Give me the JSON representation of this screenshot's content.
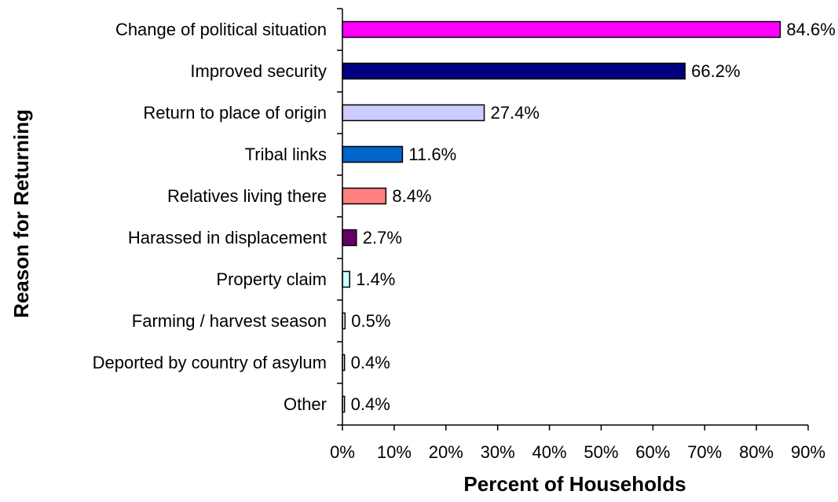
{
  "chart_data": {
    "type": "bar",
    "orientation": "horizontal",
    "categories": [
      "Change of political situation",
      "Improved security",
      "Return to place of origin",
      "Tribal links",
      "Relatives living there",
      "Harassed in displacement",
      "Property claim",
      "Farming / harvest season",
      "Deported by country of asylum",
      "Other"
    ],
    "values": [
      84.6,
      66.2,
      27.4,
      11.6,
      8.4,
      2.7,
      1.4,
      0.5,
      0.4,
      0.4
    ],
    "value_labels": [
      "84.6%",
      "66.2%",
      "27.4%",
      "11.6%",
      "8.4%",
      "2.7%",
      "1.4%",
      "0.5%",
      "0.4%",
      "0.4%"
    ],
    "colors": [
      "#FF00FF",
      "#000080",
      "#CCCCFF",
      "#0066CC",
      "#FF8080",
      "#660066",
      "#CCFFFF",
      "#FFFFFF",
      "#FFFFFF",
      "#FFFFFF"
    ],
    "xlabel": "Percent of Households",
    "ylabel": "Reason for Returning",
    "xlim": [
      0,
      90
    ],
    "xticks": [
      0,
      10,
      20,
      30,
      40,
      50,
      60,
      70,
      80,
      90
    ],
    "xtick_labels": [
      "0%",
      "10%",
      "20%",
      "30%",
      "40%",
      "50%",
      "60%",
      "70%",
      "80%",
      "90%"
    ],
    "grid": false,
    "legend": "none"
  }
}
